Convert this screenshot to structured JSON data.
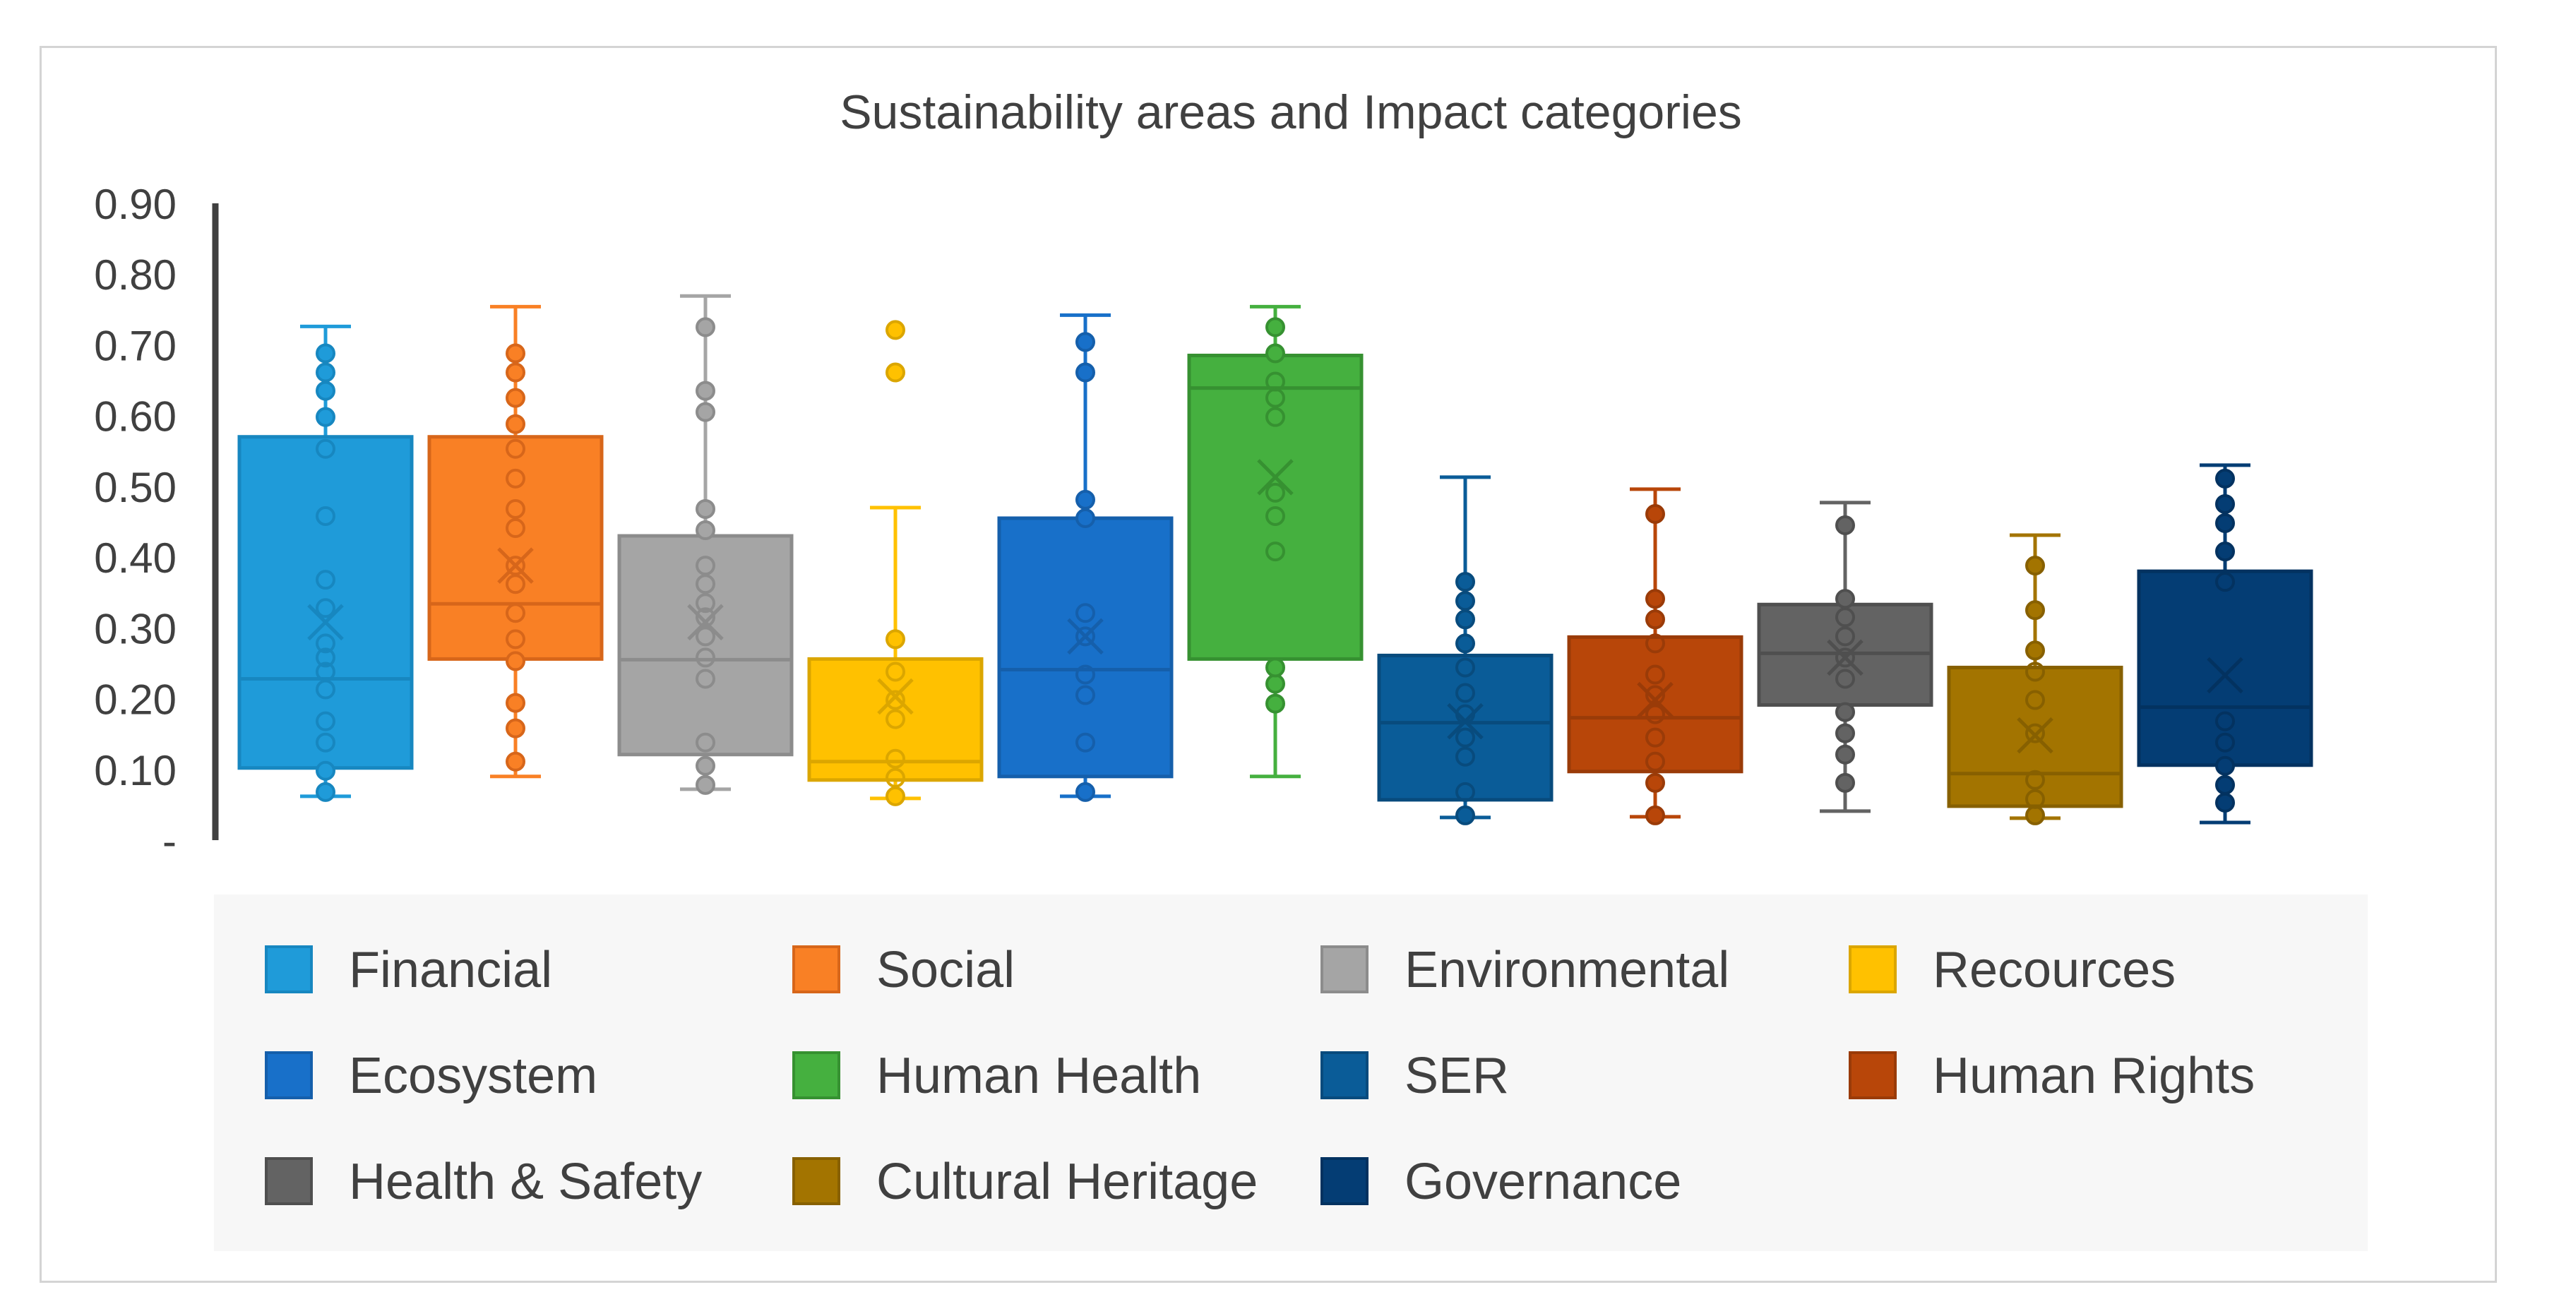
{
  "chart_data": {
    "type": "box",
    "title": "Sustainability areas and Impact categories",
    "xlabel": "",
    "ylabel": "",
    "ylim": [
      0,
      0.9
    ],
    "y_ticks": [
      "-",
      "0.10",
      "0.20",
      "0.30",
      "0.40",
      "0.50",
      "0.60",
      "0.70",
      "0.80",
      "0.90"
    ],
    "grid": false,
    "legend_position": "bottom",
    "series": [
      {
        "name": "Financial",
        "color": "#1f9bd9",
        "stroke": "#1787c0",
        "whisker_low": 0.064,
        "q1": 0.104,
        "median": 0.23,
        "q3": 0.572,
        "whisker_high": 0.728,
        "mean": 0.31,
        "points": [
          0.07,
          0.1,
          0.14,
          0.17,
          0.215,
          0.24,
          0.26,
          0.28,
          0.33,
          0.37,
          0.46,
          0.555,
          0.6,
          0.637,
          0.663,
          0.69
        ],
        "outliers": []
      },
      {
        "name": "Social",
        "color": "#f98025",
        "stroke": "#d7661a",
        "whisker_low": 0.092,
        "q1": 0.258,
        "median": 0.336,
        "q3": 0.572,
        "whisker_high": 0.756,
        "mean": 0.39,
        "points": [
          0.113,
          0.16,
          0.196,
          0.255,
          0.286,
          0.323,
          0.364,
          0.39,
          0.443,
          0.47,
          0.513,
          0.555,
          0.59,
          0.627,
          0.663,
          0.69
        ],
        "outliers": []
      },
      {
        "name": "Environmental",
        "color": "#a5a5a5",
        "stroke": "#8c8c8c",
        "whisker_low": 0.074,
        "q1": 0.123,
        "median": 0.257,
        "q3": 0.432,
        "whisker_high": 0.771,
        "mean": 0.31,
        "points": [
          0.08,
          0.107,
          0.14,
          0.23,
          0.26,
          0.29,
          0.317,
          0.337,
          0.364,
          0.39,
          0.44,
          0.47,
          0.607,
          0.637,
          0.727
        ],
        "outliers": []
      },
      {
        "name": "Recources",
        "color": "#ffc100",
        "stroke": "#dba600",
        "whisker_low": 0.061,
        "q1": 0.087,
        "median": 0.113,
        "q3": 0.258,
        "whisker_high": 0.472,
        "mean": 0.205,
        "points": [
          0.064,
          0.09,
          0.117,
          0.173,
          0.2,
          0.24,
          0.286
        ],
        "outliers": [
          0.663,
          0.723
        ]
      },
      {
        "name": "Ecosystem",
        "color": "#1870c9",
        "stroke": "#155fab",
        "whisker_low": 0.064,
        "q1": 0.092,
        "median": 0.243,
        "q3": 0.457,
        "whisker_high": 0.744,
        "mean": 0.29,
        "points": [
          0.07,
          0.14,
          0.207,
          0.236,
          0.29,
          0.323,
          0.457,
          0.483,
          0.663,
          0.706
        ],
        "outliers": []
      },
      {
        "name": "Human Health",
        "color": "#45b03f",
        "stroke": "#369131",
        "whisker_low": 0.092,
        "q1": 0.258,
        "median": 0.641,
        "q3": 0.687,
        "whisker_high": 0.756,
        "mean": 0.515,
        "points": [
          0.195,
          0.223,
          0.246,
          0.41,
          0.46,
          0.493,
          0.6,
          0.627,
          0.65,
          0.69,
          0.727
        ],
        "outliers": []
      },
      {
        "name": "SER",
        "color": "#0a5c98",
        "stroke": "#084b7d",
        "whisker_low": 0.034,
        "q1": 0.059,
        "median": 0.168,
        "q3": 0.263,
        "whisker_high": 0.515,
        "mean": 0.17,
        "points": [
          0.037,
          0.07,
          0.12,
          0.147,
          0.18,
          0.21,
          0.246,
          0.28,
          0.314,
          0.34,
          0.367
        ],
        "outliers": []
      },
      {
        "name": "Human Rights",
        "color": "#b84609",
        "stroke": "#9a3b08",
        "whisker_low": 0.035,
        "q1": 0.099,
        "median": 0.175,
        "q3": 0.289,
        "whisker_high": 0.498,
        "mean": 0.2,
        "points": [
          0.037,
          0.083,
          0.113,
          0.147,
          0.18,
          0.207,
          0.236,
          0.28,
          0.314,
          0.343,
          0.463
        ],
        "outliers": []
      },
      {
        "name": "Health & Safety",
        "color": "#636363",
        "stroke": "#4f4f4f",
        "whisker_low": 0.043,
        "q1": 0.193,
        "median": 0.266,
        "q3": 0.335,
        "whisker_high": 0.479,
        "mean": 0.26,
        "points": [
          0.083,
          0.123,
          0.153,
          0.183,
          0.23,
          0.26,
          0.29,
          0.317,
          0.343,
          0.447
        ],
        "outliers": []
      },
      {
        "name": "Cultural Heritage",
        "color": "#a37400",
        "stroke": "#876000",
        "whisker_low": 0.033,
        "q1": 0.05,
        "median": 0.096,
        "q3": 0.246,
        "whisker_high": 0.433,
        "mean": 0.15,
        "points": [
          0.037,
          0.06,
          0.087,
          0.153,
          0.2,
          0.24,
          0.27,
          0.327,
          0.39
        ],
        "outliers": []
      },
      {
        "name": "Governance",
        "color": "#043d74",
        "stroke": "#033260",
        "whisker_low": 0.027,
        "q1": 0.108,
        "median": 0.19,
        "q3": 0.382,
        "whisker_high": 0.532,
        "mean": 0.235,
        "points": [
          0.055,
          0.08,
          0.107,
          0.14,
          0.17,
          0.367,
          0.41,
          0.45,
          0.477,
          0.513
        ],
        "outliers": []
      }
    ]
  }
}
